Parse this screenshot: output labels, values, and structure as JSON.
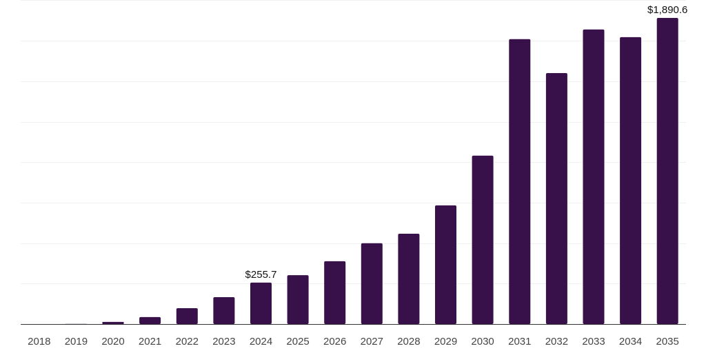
{
  "chart_data": {
    "type": "bar",
    "title": "",
    "xlabel": "",
    "ylabel": "",
    "categories": [
      "2018",
      "2019",
      "2020",
      "2021",
      "2022",
      "2023",
      "2024",
      "2025",
      "2026",
      "2027",
      "2028",
      "2029",
      "2030",
      "2031",
      "2032",
      "2033",
      "2034",
      "2035"
    ],
    "values": [
      0,
      1,
      13,
      43,
      98,
      166,
      255.7,
      302,
      388,
      499,
      558,
      733,
      1040,
      1760,
      1550,
      1819,
      1772,
      1890.6
    ],
    "data_labels": [
      {
        "index": 6,
        "text": "$255.7"
      },
      {
        "index": 17,
        "text": "$1,890.6"
      }
    ],
    "ylim": [
      0,
      2000
    ],
    "grid_step": 250,
    "grid": true,
    "bar_color": "#38104a",
    "grid_color": "#f0f0f0",
    "axis_color": "#333333"
  }
}
